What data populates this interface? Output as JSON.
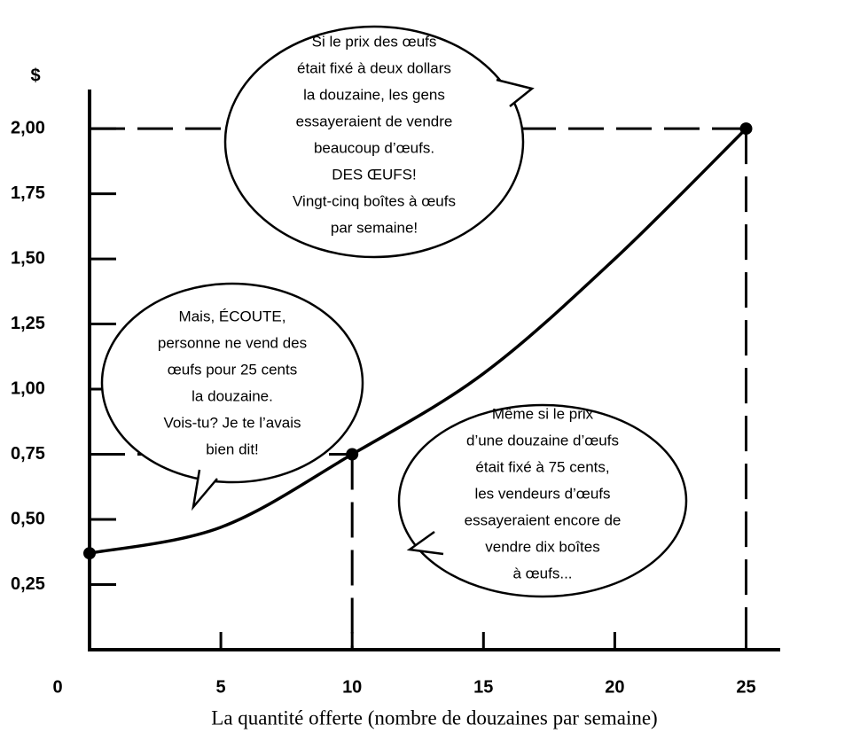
{
  "chart_data": {
    "type": "line",
    "y_label": "$",
    "x_label": "La quantité offerte (nombre de douzaines par semaine)",
    "x": [
      0,
      5,
      10,
      15,
      20,
      25
    ],
    "values": [
      0.37,
      0.47,
      0.75,
      1.06,
      1.5,
      2.0
    ],
    "color": "#000000",
    "points": {
      "x": [
        0,
        10,
        25
      ],
      "values": [
        0.37,
        0.75,
        2.0
      ]
    },
    "xlim": [
      0,
      26.3
    ],
    "ylim": [
      0,
      2.15
    ],
    "xticks": [
      0,
      5,
      10,
      15,
      20,
      25
    ],
    "yticks": [
      {
        "value": 0.25,
        "label": "0,25"
      },
      {
        "value": 0.5,
        "label": "0,50"
      },
      {
        "value": 0.75,
        "label": "0,75"
      },
      {
        "value": 1.0,
        "label": "1,00"
      },
      {
        "value": 1.25,
        "label": "1,25"
      },
      {
        "value": 1.5,
        "label": "1,50"
      },
      {
        "value": 1.75,
        "label": "1,75"
      },
      {
        "value": 2.0,
        "label": "2,00"
      }
    ],
    "annotations": [
      [
        "Si le prix des œufs",
        "était fixé à deux dollars",
        "la douzaine, les gens",
        "essayeraient de vendre",
        "beaucoup d’œufs.",
        "DES ŒUFS!",
        "Vingt-cinq boîtes à œufs",
        "par semaine!"
      ],
      [
        "Mais, ÉCOUTE,",
        "personne ne vend des",
        "œufs pour 25 cents",
        "la douzaine.",
        "Vois-tu? Je te l’avais",
        "bien dit!"
      ],
      [
        "Même si le prix",
        "d’une douzaine d’œufs",
        "était fixé à 75 cents,",
        "les vendeurs d’œufs",
        "essayeraient encore de",
        "vendre dix boîtes",
        "à œufs..."
      ]
    ]
  }
}
